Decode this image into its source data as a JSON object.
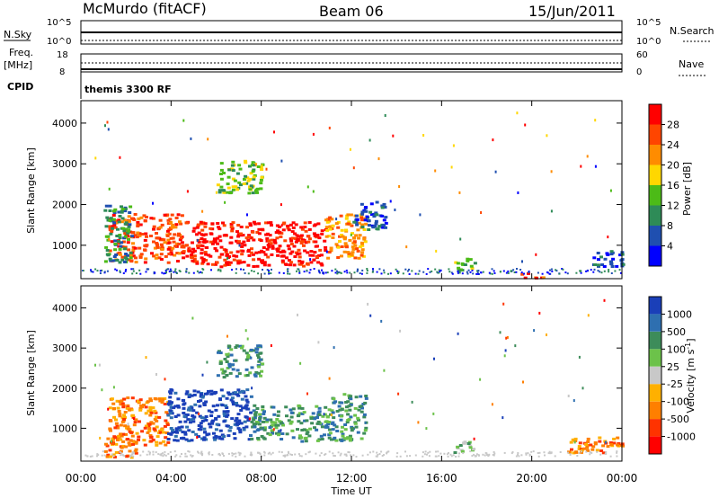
{
  "header": {
    "station": "McMurdo (fitACF)",
    "beam": "Beam 06",
    "date": "15/Jun/2011"
  },
  "top_panels": {
    "nsky_label": "N.Sky",
    "nsky_ticks": [
      "10^5",
      "10^0"
    ],
    "nsearch_label": "N.Search",
    "nsearch_ticks": [
      "10^5",
      "10^0"
    ],
    "freq_label_1": "Freq.",
    "freq_label_2": "[MHz]",
    "freq_ticks": [
      "18",
      "8"
    ],
    "nave_label": "Nave",
    "nave_ticks": [
      "60",
      "0"
    ],
    "cpid_label": "CPID",
    "cpid_value": "themis 3300 RF"
  },
  "colors": {
    "power": [
      "#0000ff",
      "#1f4fb0",
      "#2e8b57",
      "#4cbb17",
      "#ffd700",
      "#ff8c00",
      "#ff4500",
      "#ff0000"
    ],
    "velocity": [
      "#1a3fb8",
      "#2e6fb0",
      "#3d8c5a",
      "#6cc24a",
      "#c8c8c8",
      "#ffb000",
      "#ff7f00",
      "#ff3300",
      "#ff0000"
    ]
  },
  "chart_data": [
    {
      "type": "heatmap",
      "ylabel": "Slant Range [km]",
      "xlabel": "",
      "xlim": [
        0,
        24
      ],
      "ylim": [
        180,
        4550
      ],
      "yticks": [
        "1000",
        "2000",
        "3000",
        "4000"
      ],
      "xticks": [
        "00:00",
        "04:00",
        "08:00",
        "12:00",
        "16:00",
        "20:00",
        "00:00"
      ],
      "colorbar_label": "Power [dB]",
      "colorbar_ticks": [
        "4",
        "8",
        "12",
        "16",
        "20",
        "24",
        "28"
      ],
      "regions": [
        {
          "t": [
            1.2,
            4.5
          ],
          "r": [
            600,
            1800
          ],
          "level": 6
        },
        {
          "t": [
            4.6,
            10.8
          ],
          "r": [
            500,
            1600
          ],
          "level": 7
        },
        {
          "t": [
            10.8,
            12.6
          ],
          "r": [
            700,
            1800
          ],
          "level": 5
        },
        {
          "t": [
            1.0,
            2.2
          ],
          "r": [
            600,
            2000
          ],
          "level": 2
        },
        {
          "t": [
            6.0,
            8.0
          ],
          "r": [
            2300,
            3100
          ],
          "level": 3
        },
        {
          "t": [
            12.0,
            13.5
          ],
          "r": [
            1400,
            2100
          ],
          "level": 1
        },
        {
          "t": [
            16.5,
            17.5
          ],
          "r": [
            400,
            700
          ],
          "level": 3
        },
        {
          "t": [
            19.5,
            20.5
          ],
          "r": [
            220,
            350
          ],
          "level": 6
        },
        {
          "t": [
            22.5,
            24.0
          ],
          "r": [
            500,
            900
          ],
          "level": 1
        }
      ]
    },
    {
      "type": "heatmap",
      "ylabel": "Slant Range [km]",
      "xlabel": "Time UT",
      "xlim": [
        0,
        24
      ],
      "ylim": [
        180,
        4550
      ],
      "yticks": [
        "1000",
        "2000",
        "3000",
        "4000"
      ],
      "xticks": [
        "00:00",
        "04:00",
        "08:00",
        "12:00",
        "16:00",
        "20:00",
        "00:00"
      ],
      "colorbar_label": "Velocity [m s^-1]",
      "colorbar_ticks": [
        "1000",
        "500",
        "100",
        "25",
        "-25",
        "-100",
        "-500",
        "-1000"
      ],
      "regions": [
        {
          "t": [
            1.2,
            3.8
          ],
          "r": [
            600,
            1800
          ],
          "level": 6
        },
        {
          "t": [
            3.8,
            7.5
          ],
          "r": [
            700,
            2000
          ],
          "level": 0
        },
        {
          "t": [
            7.5,
            11.0
          ],
          "r": [
            700,
            1600
          ],
          "level": 2
        },
        {
          "t": [
            11.0,
            12.6
          ],
          "r": [
            700,
            1900
          ],
          "level": 2
        },
        {
          "t": [
            1.0,
            2.5
          ],
          "r": [
            300,
            900
          ],
          "level": 6
        },
        {
          "t": [
            6.0,
            8.0
          ],
          "r": [
            2300,
            3100
          ],
          "level": 2
        },
        {
          "t": [
            16.5,
            17.5
          ],
          "r": [
            400,
            700
          ],
          "level": 3
        },
        {
          "t": [
            21.5,
            24.0
          ],
          "r": [
            400,
            800
          ],
          "level": 6
        }
      ]
    }
  ]
}
